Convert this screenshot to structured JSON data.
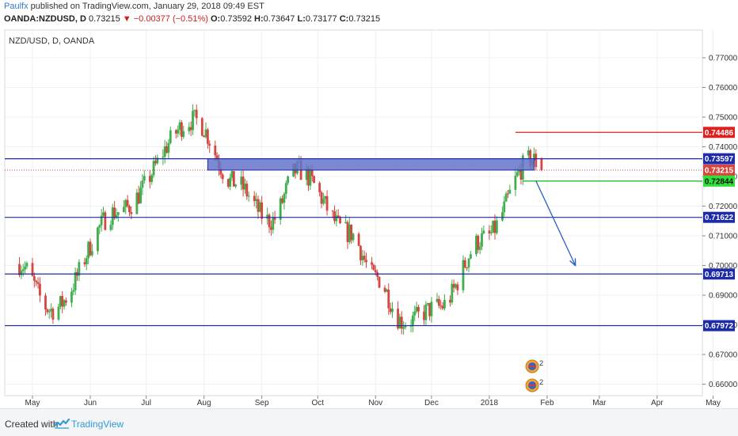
{
  "header": {
    "author": "Paulfx",
    "published_text": " published on TradingView.com, January 29, 2018 09:49 EST",
    "symbol": "OANDA:NZDUSD, D",
    "last": "0.73215",
    "change": "▼ −0.00377 (−0.51%)",
    "o_label": "O:",
    "o_value": "0.73592",
    "h_label": "H:",
    "h_value": "0.73647",
    "l_label": "L:",
    "l_value": "0.73177",
    "c_label": "C:",
    "c_value": "0.73215"
  },
  "chart_label": "NZD/USD, D, OANDA",
  "footer": {
    "created_with": "Created with",
    "brand": "TradingView"
  },
  "colors": {
    "up": "#3fae4c",
    "down": "#d6463f",
    "level": "#1d2ba8",
    "zone_fill": "#6573c9",
    "resistance": "#e02020",
    "support": "#22c02e",
    "arrow": "#2860c8"
  },
  "chart_data": {
    "type": "candlestick",
    "title": "NZD/USD, D, OANDA",
    "x_axis_labels": [
      "May",
      "Jun",
      "Jul",
      "Aug",
      "Sep",
      "Oct",
      "Nov",
      "Dec",
      "2018",
      "Feb",
      "Mar",
      "Apr",
      "May"
    ],
    "y_ticks": [
      0.77,
      0.76,
      0.75,
      0.74,
      0.73,
      0.72,
      0.71,
      0.7,
      0.69,
      0.68,
      0.67,
      0.66
    ],
    "y_tick_labels": [
      "0.77000",
      "0.76000",
      "0.75000",
      "0.74000",
      "0.73000",
      "0.72000",
      "0.71000",
      "0.70000",
      "0.69000",
      "0.68000",
      "0.67000",
      "0.66000"
    ],
    "ylim": [
      0.6545,
      0.7795
    ],
    "horizontal_levels": [
      0.73597,
      0.71622,
      0.69713,
      0.67972
    ],
    "resistance_level": 0.74486,
    "support_level": 0.72844,
    "last_price": 0.73215,
    "price_labels": [
      "0.74486",
      "0.73597",
      "0.73215",
      "0.72844",
      "0.71622",
      "0.69713",
      "0.67972"
    ],
    "zone": {
      "from": "2017-08-03",
      "to": "2018-01-25",
      "low": 0.73215,
      "high": 0.73597
    },
    "projection_arrow": {
      "from_date": "2018-01-26",
      "from_price": 0.7285,
      "to_date": "2018-02-16",
      "to_price": 0.7002
    },
    "key_closes": [
      {
        "date": "2017-04-24",
        "close": 0.7005
      },
      {
        "date": "2017-05-11",
        "close": 0.685
      },
      {
        "date": "2017-06-15",
        "close": 0.718
      },
      {
        "date": "2017-07-27",
        "close": 0.749
      },
      {
        "date": "2017-08-17",
        "close": 0.728
      },
      {
        "date": "2017-09-06",
        "close": 0.715
      },
      {
        "date": "2017-09-20",
        "close": 0.732
      },
      {
        "date": "2017-10-18",
        "close": 0.711
      },
      {
        "date": "2017-11-01",
        "close": 0.696
      },
      {
        "date": "2017-11-16",
        "close": 0.681
      },
      {
        "date": "2017-12-05",
        "close": 0.686
      },
      {
        "date": "2017-12-29",
        "close": 0.709
      },
      {
        "date": "2018-01-24",
        "close": 0.7359
      },
      {
        "date": "2018-01-29",
        "close": 0.73215
      }
    ]
  }
}
